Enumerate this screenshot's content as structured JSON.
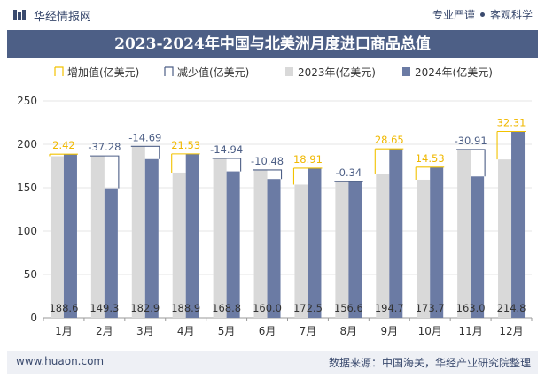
{
  "header": {
    "brand": "华经情报网",
    "tag1": "专业严谨",
    "tag2": "客观科学"
  },
  "footer": {
    "url": "www.huaon.com",
    "source": "数据来源：中国海关，华经产业研究院整理"
  },
  "colors": {
    "bar2023": "#d9d9d9",
    "bar2024": "#6b7ba4",
    "increase": "#f2c200",
    "decrease": "#4d5f86",
    "increase_label": "#f0b800",
    "decrease_label": "#4d5f86"
  },
  "chart_data": {
    "type": "bar",
    "title": "2023-2024年中国与北美洲月度进口商品总值",
    "categories": [
      "1月",
      "2月",
      "3月",
      "4月",
      "5月",
      "6月",
      "7月",
      "8月",
      "9月",
      "10月",
      "11月",
      "12月"
    ],
    "series": [
      {
        "name": "2023年(亿美元)",
        "values": [
          186.2,
          186.6,
          197.6,
          167.4,
          183.7,
          170.5,
          153.6,
          156.9,
          166.1,
          159.2,
          193.9,
          182.5
        ]
      },
      {
        "name": "2024年(亿美元)",
        "values": [
          188.6,
          149.3,
          182.9,
          188.9,
          168.8,
          160.0,
          172.5,
          156.6,
          194.7,
          173.7,
          163.0,
          214.8
        ]
      }
    ],
    "changes": [
      "2.42",
      "-37.28",
      "-14.69",
      "21.53",
      "-14.94",
      "-10.48",
      "18.91",
      "-0.34",
      "28.65",
      "14.53",
      "-30.91",
      "32.31"
    ],
    "value_labels": [
      "188.6",
      "149.3",
      "182.9",
      "188.9",
      "168.8",
      "160.0",
      "172.5",
      "156.6",
      "194.7",
      "173.7",
      "163.0",
      "214.8"
    ],
    "legend": [
      "增加值(亿美元)",
      "减少值(亿美元)",
      "2023年(亿美元)",
      "2024年(亿美元)"
    ],
    "yticks": [
      "0",
      "50",
      "100",
      "150",
      "200",
      "250"
    ],
    "ylim": [
      0,
      250
    ],
    "grid": true,
    "legend_position": "top"
  }
}
